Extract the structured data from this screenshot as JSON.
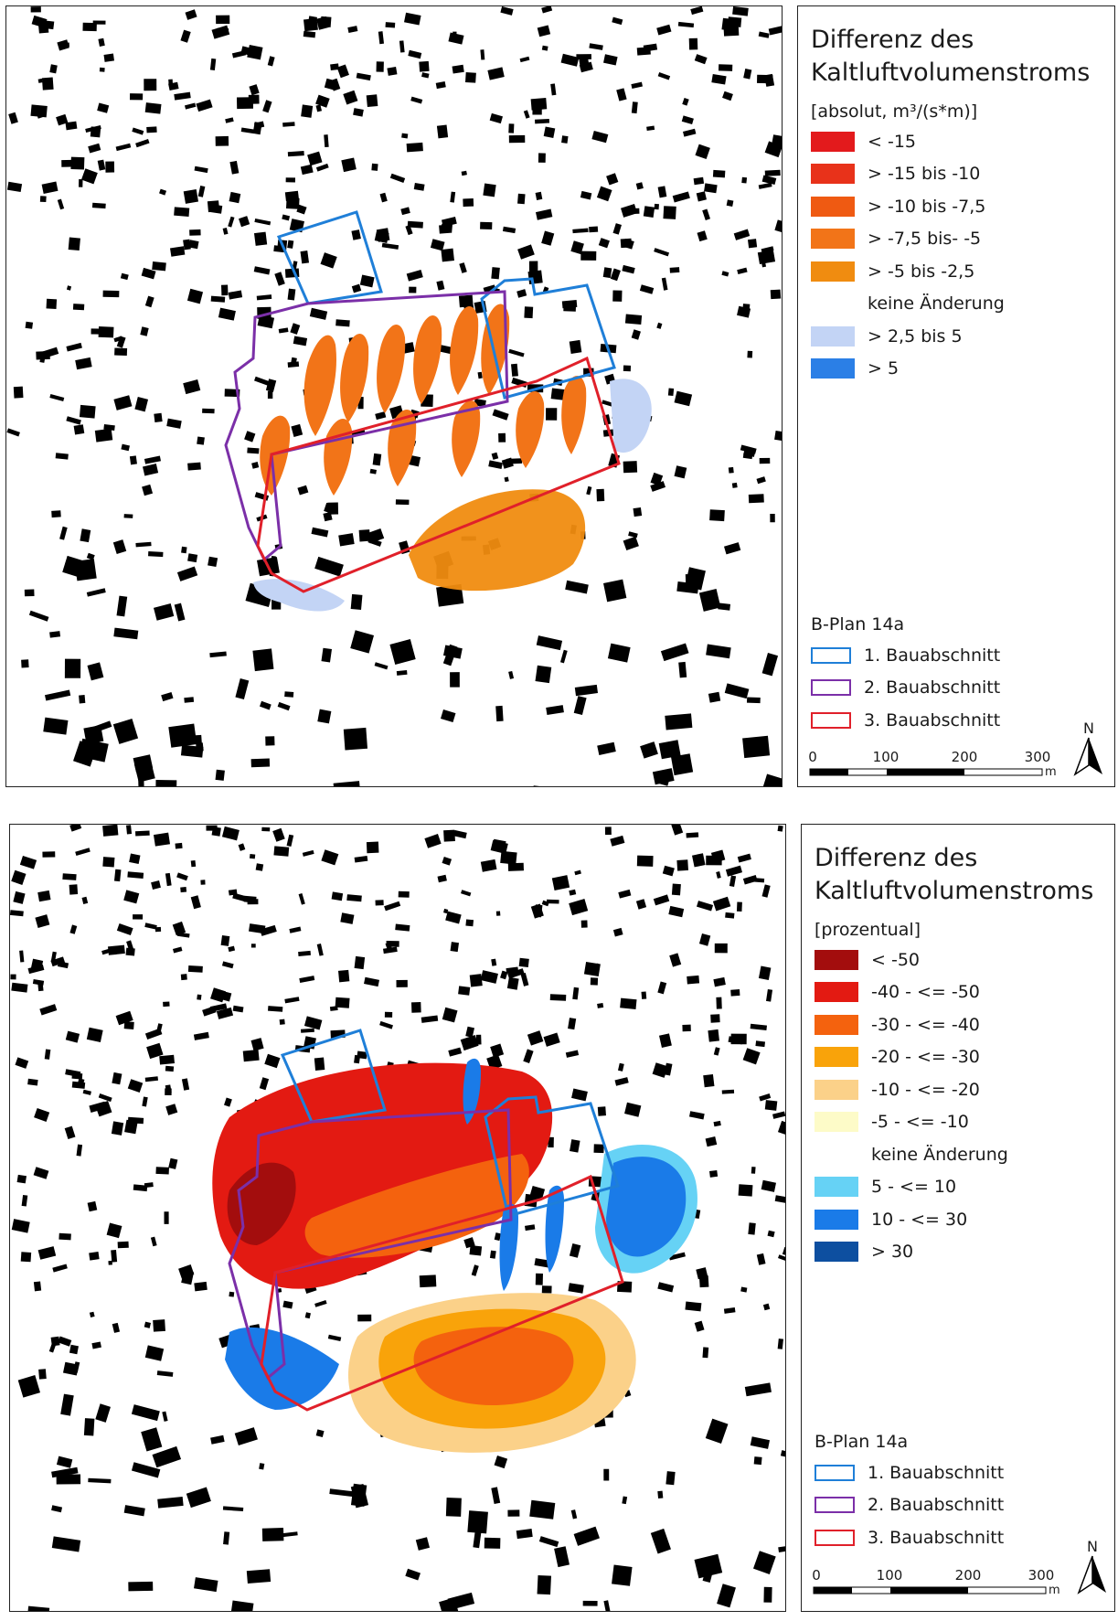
{
  "panels": [
    {
      "legend": {
        "title_line1": "Differenz des",
        "title_line2": "Kaltluftvolumenstroms",
        "unit": "[absolut, m³/(s*m)]",
        "classes": [
          {
            "label": "< -15",
            "color": "#e31a1c"
          },
          {
            "label": "> -15 bis -10",
            "color": "#e8321a"
          },
          {
            "label": "> -10 bis -7,5",
            "color": "#ef5a12"
          },
          {
            "label": "> -7,5 bis- -5",
            "color": "#f27418"
          },
          {
            "label": "> -5 bis -2,5",
            "color": "#f08c10"
          },
          {
            "label": "keine Änderung",
            "color": ""
          },
          {
            "label": "> 2,5 bis 5",
            "color": "#c3d4f5"
          },
          {
            "label": "> 5",
            "color": "#2b7fe6"
          }
        ]
      },
      "plan": {
        "title": "B-Plan 14a",
        "items": [
          {
            "label": "1. Bauabschnitt",
            "color": "#1f7fd8"
          },
          {
            "label": "2. Bauabschnitt",
            "color": "#7b2fa8"
          },
          {
            "label": "3. Bauabschnitt",
            "color": "#e0202a"
          }
        ]
      },
      "scale": {
        "labels": [
          "0",
          "100",
          "200",
          "300"
        ],
        "unit": "m"
      },
      "north": "N"
    },
    {
      "legend": {
        "title_line1": "Differenz des",
        "title_line2": "Kaltluftvolumenstroms",
        "unit": "[prozentual]",
        "classes": [
          {
            "label": "< -50",
            "color": "#a30d0d"
          },
          {
            "label": "-40 - <= -50",
            "color": "#e31a12"
          },
          {
            "label": "-30 - <= -40",
            "color": "#f4620e"
          },
          {
            "label": "-20 - <= -30",
            "color": "#f9a30a"
          },
          {
            "label": "-10 - <= -20",
            "color": "#fbd189"
          },
          {
            "label": "-5 - <= -10",
            "color": "#fdfbc8"
          },
          {
            "label": "keine Änderung",
            "color": ""
          },
          {
            "label": "5 - <= 10",
            "color": "#66d2f5"
          },
          {
            "label": "10 - <= 30",
            "color": "#1a7be8"
          },
          {
            "label": "> 30",
            "color": "#0d4fa0"
          }
        ]
      },
      "plan": {
        "title": "B-Plan 14a",
        "items": [
          {
            "label": "1. Bauabschnitt",
            "color": "#1f7fd8"
          },
          {
            "label": "2. Bauabschnitt",
            "color": "#7b2fa8"
          },
          {
            "label": "3. Bauabschnitt",
            "color": "#e0202a"
          }
        ]
      },
      "scale": {
        "labels": [
          "0",
          "100",
          "200",
          "300"
        ],
        "unit": "m"
      },
      "north": "N"
    }
  ]
}
